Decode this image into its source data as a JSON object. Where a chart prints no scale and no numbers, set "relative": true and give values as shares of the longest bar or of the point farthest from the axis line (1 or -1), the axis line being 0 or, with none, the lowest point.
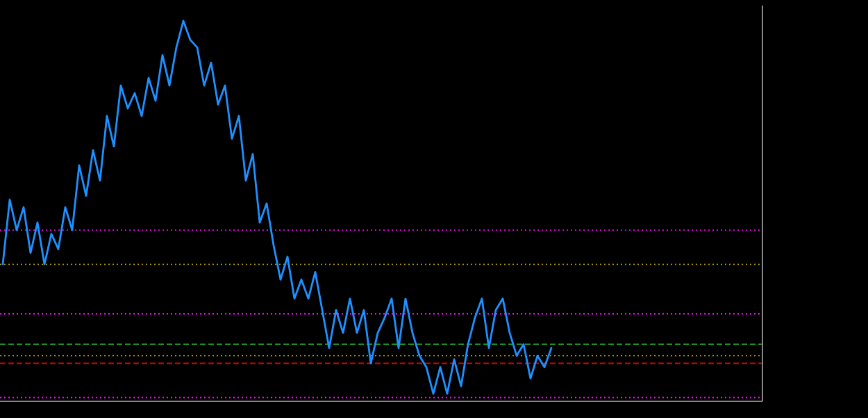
{
  "chart_data": {
    "type": "line",
    "relative": true,
    "legend": false,
    "grid": false,
    "marker": "none",
    "line_style": "solid",
    "categories": [
      null,
      null,
      null,
      null,
      null,
      null,
      null,
      null,
      null,
      null,
      null,
      null,
      null,
      null,
      null,
      null,
      null,
      null,
      null,
      null,
      null,
      null,
      null,
      null,
      null,
      null,
      null,
      null,
      null,
      null,
      null,
      null,
      null,
      null,
      null,
      null,
      null,
      null,
      null,
      null,
      null,
      null,
      null,
      null,
      null,
      null,
      null,
      null,
      null,
      null,
      null,
      null,
      null,
      null,
      null,
      null,
      null,
      null,
      null,
      null,
      null,
      null,
      null,
      null,
      null,
      null,
      null,
      null,
      null,
      null,
      null,
      null,
      null,
      null,
      null,
      null,
      null,
      null,
      null,
      null,
      null,
      null,
      null,
      null,
      null,
      null,
      null,
      null,
      null,
      null,
      null,
      null,
      null,
      null,
      null,
      null,
      null,
      null,
      null,
      null,
      null,
      null,
      null,
      null,
      null,
      null,
      null,
      null,
      null,
      null
    ],
    "series": [
      {
        "color": "#1e90ff",
        "values": [
          0.36,
          0.53,
          0.45,
          0.51,
          0.39,
          0.47,
          0.36,
          0.44,
          0.4,
          0.51,
          0.45,
          0.62,
          0.54,
          0.66,
          0.58,
          0.75,
          0.67,
          0.83,
          0.77,
          0.81,
          0.75,
          0.85,
          0.79,
          0.91,
          0.83,
          0.93,
          1.0,
          0.95,
          0.93,
          0.83,
          0.89,
          0.78,
          0.83,
          0.69,
          0.75,
          0.58,
          0.65,
          0.47,
          0.52,
          0.41,
          0.32,
          0.38,
          0.27,
          0.32,
          0.27,
          0.34,
          0.24,
          0.14,
          0.24,
          0.18,
          0.27,
          0.18,
          0.24,
          0.1,
          0.18,
          0.22,
          0.27,
          0.14,
          0.27,
          0.18,
          0.12,
          0.09,
          0.02,
          0.09,
          0.02,
          0.11,
          0.04,
          0.15,
          0.22,
          0.27,
          0.14,
          0.24,
          0.27,
          0.18,
          0.12,
          0.15,
          0.06,
          0.12,
          0.09,
          0.14,
          null,
          null,
          null,
          null,
          null,
          null,
          null,
          null,
          null,
          null,
          null,
          null,
          null,
          null,
          null,
          null,
          null,
          null,
          null,
          null,
          null,
          null,
          null,
          null,
          null,
          null,
          null,
          null,
          null,
          null
        ]
      }
    ],
    "ref_lines": [
      {
        "axis": "y",
        "value": 0.45,
        "color": "#ff00ff",
        "line_style": "dotted"
      },
      {
        "axis": "y",
        "value": 0.36,
        "color": "#b8a000",
        "line_style": "dotted"
      },
      {
        "axis": "y",
        "value": 0.23,
        "color": "#ff00ff",
        "line_style": "dotted"
      },
      {
        "axis": "y",
        "value": 0.15,
        "color": "#22aa22",
        "line_style": "dashed"
      },
      {
        "axis": "y",
        "value": 0.12,
        "color": "#b8a000",
        "line_style": "dotted"
      },
      {
        "axis": "y",
        "value": 0.1,
        "color": "#cc0000",
        "line_style": "dashed"
      },
      {
        "axis": "y",
        "value": 0.01,
        "color": "#ff00ff",
        "line_style": "dotted"
      }
    ]
  }
}
